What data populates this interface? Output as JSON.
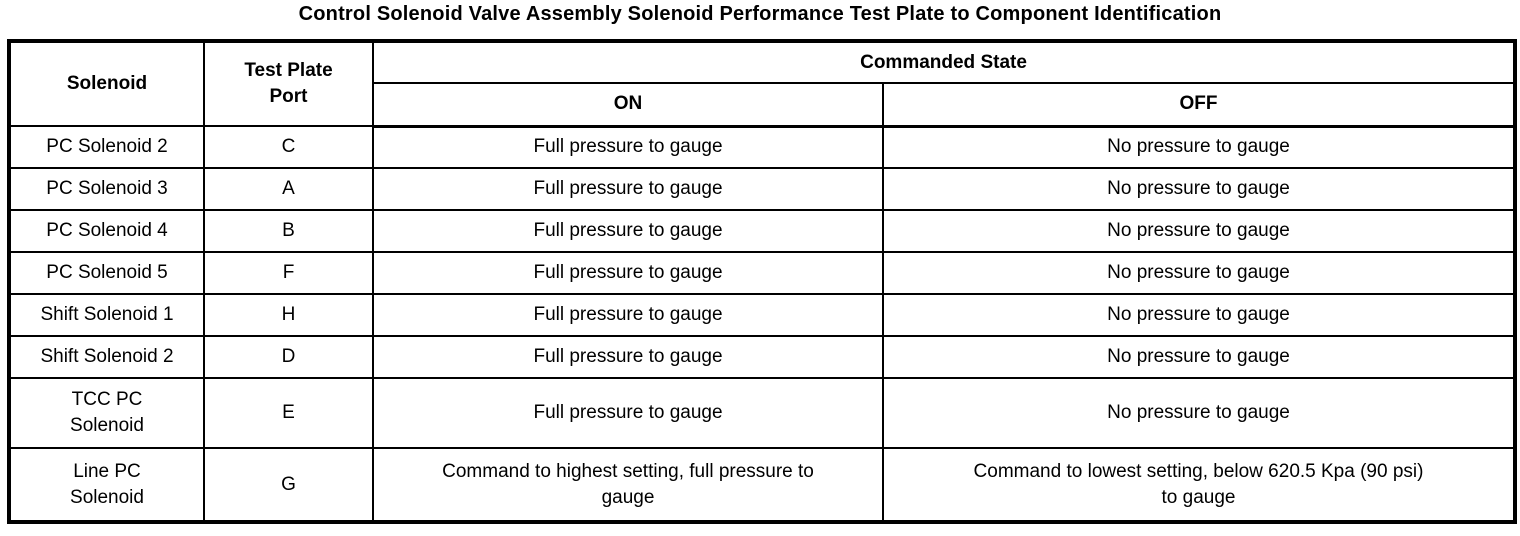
{
  "title": "Control Solenoid Valve Assembly Solenoid Performance Test Plate to Component Identification",
  "table": {
    "headers": {
      "solenoid": "Solenoid",
      "test_plate_port": "Test Plate\nPort",
      "commanded_state": "Commanded State",
      "on": "ON",
      "off": "OFF"
    },
    "rows": [
      {
        "solenoid": "PC Solenoid 2",
        "port": "C",
        "on": "Full pressure to gauge",
        "off": "No pressure to gauge"
      },
      {
        "solenoid": "PC Solenoid 3",
        "port": "A",
        "on": "Full pressure to gauge",
        "off": "No pressure to gauge"
      },
      {
        "solenoid": "PC Solenoid 4",
        "port": "B",
        "on": "Full pressure to gauge",
        "off": "No pressure to gauge"
      },
      {
        "solenoid": "PC Solenoid 5",
        "port": "F",
        "on": "Full pressure to gauge",
        "off": "No pressure to gauge"
      },
      {
        "solenoid": "Shift Solenoid 1",
        "port": "H",
        "on": "Full pressure to gauge",
        "off": "No pressure to gauge"
      },
      {
        "solenoid": "Shift Solenoid 2",
        "port": "D",
        "on": "Full pressure to gauge",
        "off": "No pressure to gauge"
      },
      {
        "solenoid": "TCC PC\nSolenoid",
        "port": "E",
        "on": "Full pressure to gauge",
        "off": "No pressure to gauge"
      },
      {
        "solenoid": "Line PC\nSolenoid",
        "port": "G",
        "on": "Command to highest setting, full pressure to\ngauge",
        "off": "Command to lowest setting, below 620.5 Kpa (90 psi)\nto gauge"
      }
    ]
  },
  "colors": {
    "text": "#000000",
    "border": "#000000",
    "background": "#ffffff"
  }
}
